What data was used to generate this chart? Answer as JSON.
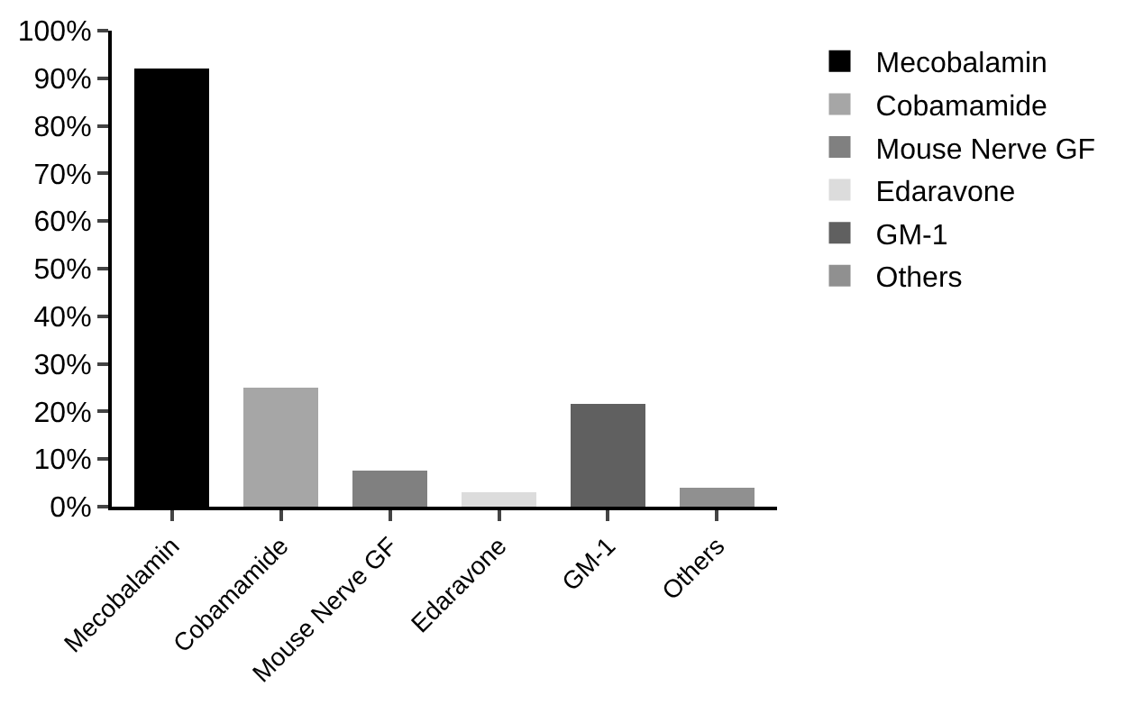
{
  "chart_data": {
    "type": "bar",
    "categories": [
      "Mecobalamin",
      "Cobamamide",
      "Mouse Nerve GF",
      "Edaravone",
      "GM-1",
      "Others"
    ],
    "series": [
      {
        "name": "Mecobalamin",
        "color": "#000000",
        "values": [
          92,
          null,
          null,
          null,
          null,
          null
        ]
      },
      {
        "name": "Cobamamide",
        "color": "#a6a6a6",
        "values": [
          null,
          25,
          null,
          null,
          null,
          null
        ]
      },
      {
        "name": "Mouse Nerve GF",
        "color": "#808080",
        "values": [
          null,
          null,
          7.5,
          null,
          null,
          null
        ]
      },
      {
        "name": "Edaravone",
        "color": "#dcdcdc",
        "values": [
          null,
          null,
          null,
          3,
          null,
          null
        ]
      },
      {
        "name": "GM-1",
        "color": "#606060",
        "values": [
          null,
          null,
          null,
          null,
          21.5,
          null
        ]
      },
      {
        "name": "Others",
        "color": "#909090",
        "values": [
          null,
          null,
          null,
          null,
          null,
          4
        ]
      }
    ],
    "stacked": true,
    "legend": "right",
    "ylim": [
      0,
      100
    ],
    "yticks": [
      {
        "value": 0,
        "label": "0%"
      },
      {
        "value": 10,
        "label": "10%"
      },
      {
        "value": 20,
        "label": "20%"
      },
      {
        "value": 30,
        "label": "30%"
      },
      {
        "value": 40,
        "label": "40%"
      },
      {
        "value": 50,
        "label": "50%"
      },
      {
        "value": 60,
        "label": "60%"
      },
      {
        "value": 70,
        "label": "70%"
      },
      {
        "value": 80,
        "label": "80%"
      },
      {
        "value": 90,
        "label": "90%"
      },
      {
        "value": 100,
        "label": "100%"
      }
    ]
  }
}
